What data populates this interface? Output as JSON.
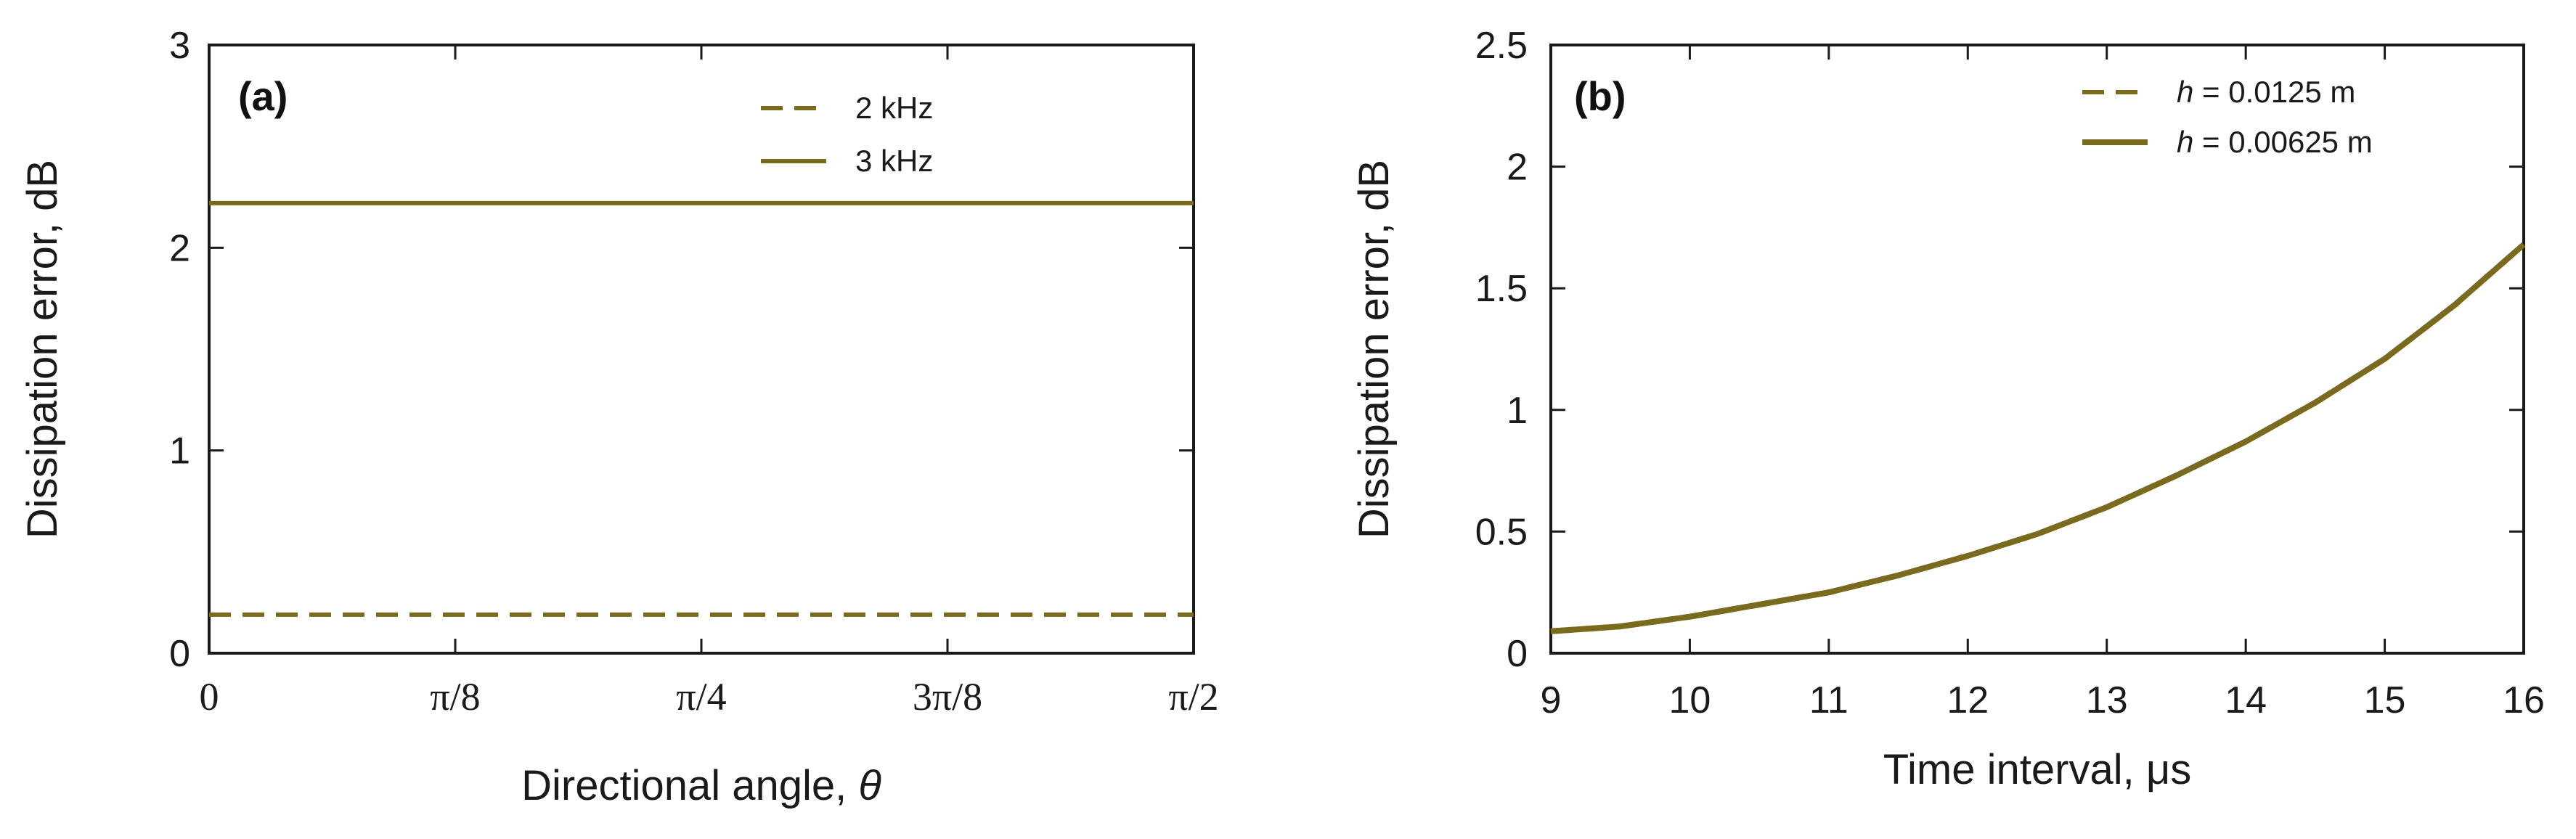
{
  "colors": {
    "series": "#7a6a1e",
    "axis": "#1a1a1a"
  },
  "chart_data": [
    {
      "panel": "(a)",
      "type": "line",
      "xlabel_text": "Directional angle, ",
      "xlabel_symbol": "θ",
      "ylabel": "Dissipation error, dB",
      "xlim": [
        0,
        1.5708
      ],
      "ylim": [
        0,
        3
      ],
      "xticks": [
        0,
        0.3927,
        0.7854,
        1.1781,
        1.5708
      ],
      "xtick_labels": [
        "0",
        "π/8",
        "π/4",
        "3π/8",
        "π/2"
      ],
      "yticks": [
        0,
        1,
        2,
        3
      ],
      "ytick_labels": [
        "0",
        "1",
        "2",
        "3"
      ],
      "legend_position": "top-right",
      "series": [
        {
          "name": "2 kHz",
          "style": "dashed",
          "x": [
            0,
            1.5708
          ],
          "y": [
            0.19,
            0.19
          ]
        },
        {
          "name": "3 kHz",
          "style": "solid",
          "x": [
            0,
            1.5708
          ],
          "y": [
            2.22,
            2.22
          ]
        }
      ]
    },
    {
      "panel": "(b)",
      "type": "line",
      "xlabel": "Time interval, μs",
      "ylabel": "Dissipation error, dB",
      "xlim": [
        9,
        16
      ],
      "ylim": [
        0,
        2.5
      ],
      "xticks": [
        9,
        10,
        11,
        12,
        13,
        14,
        15,
        16
      ],
      "xtick_labels": [
        "9",
        "10",
        "11",
        "12",
        "13",
        "14",
        "15",
        "16"
      ],
      "yticks": [
        0,
        0.5,
        1,
        1.5,
        2,
        2.5
      ],
      "ytick_labels": [
        "0",
        "0.5",
        "1",
        "1.5",
        "2",
        "2.5"
      ],
      "legend_position": "top-right",
      "series": [
        {
          "name_symbol": "h",
          "name_rest": " = 0.0125 m",
          "style": "dashed",
          "x": [
            9,
            9.5,
            10,
            10.5,
            11,
            11.5,
            12,
            12.5,
            13,
            13.5,
            14,
            14.5,
            15,
            15.5,
            16
          ],
          "y": [
            0.09,
            0.11,
            0.15,
            0.2,
            0.25,
            0.32,
            0.4,
            0.49,
            0.6,
            0.73,
            0.87,
            1.03,
            1.21,
            1.43,
            1.68
          ]
        },
        {
          "name_symbol": "h",
          "name_rest": " = 0.00625 m",
          "style": "solid",
          "x": [
            9,
            9.5,
            10,
            10.5,
            11,
            11.5,
            12,
            12.5,
            13,
            13.5,
            14,
            14.5,
            15,
            15.5,
            16
          ],
          "y": [
            0.09,
            0.11,
            0.15,
            0.2,
            0.25,
            0.32,
            0.4,
            0.49,
            0.6,
            0.73,
            0.87,
            1.03,
            1.21,
            1.43,
            1.68
          ]
        }
      ]
    }
  ]
}
